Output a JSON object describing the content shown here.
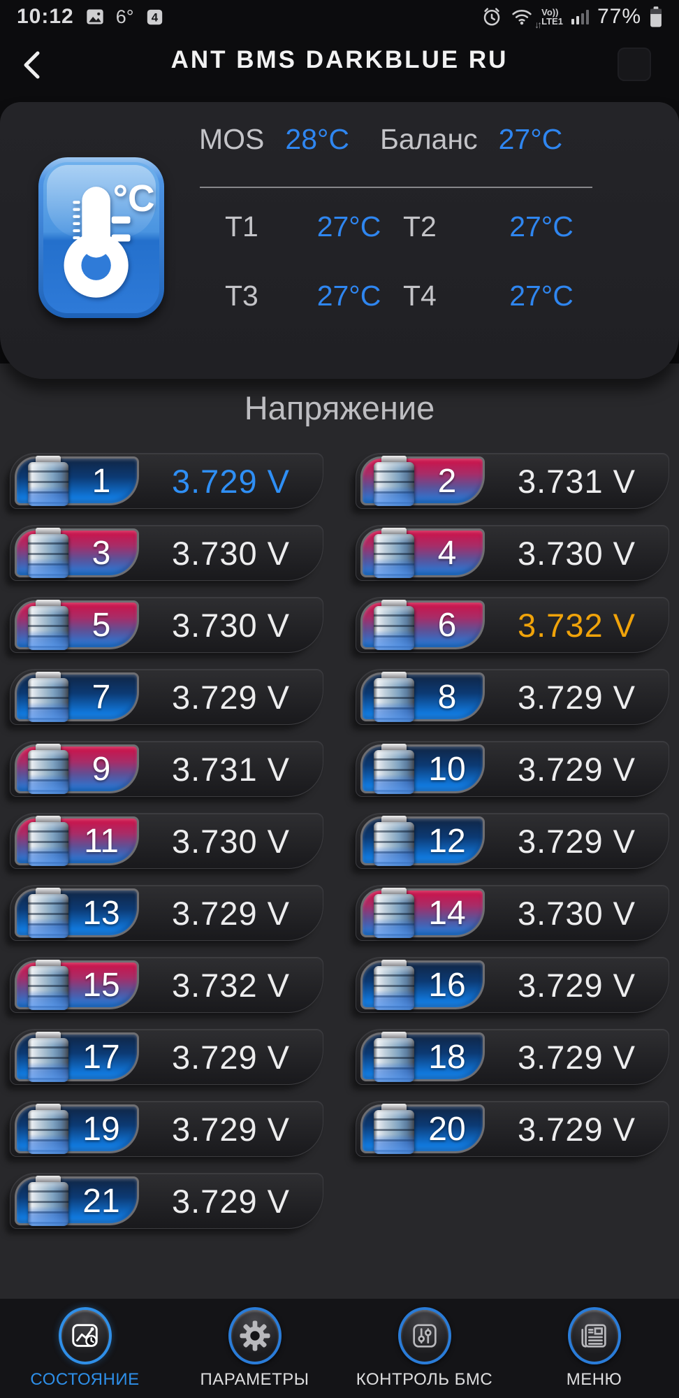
{
  "status_bar": {
    "time": "10:12",
    "temperature": "6°",
    "volte_line1": "Vo))",
    "volte_line2": "LTE1",
    "battery_percent": "77%"
  },
  "header": {
    "title": "ANT BMS DARKBLUE RU"
  },
  "temperature_card": {
    "mos_label": "MOS",
    "mos_value": "28°C",
    "balance_label": "Баланс",
    "balance_value": "27°C",
    "sensors": [
      {
        "label": "T1",
        "value": "27°C"
      },
      {
        "label": "T2",
        "value": "27°C"
      },
      {
        "label": "T3",
        "value": "27°C"
      },
      {
        "label": "T4",
        "value": "27°C"
      }
    ]
  },
  "voltage": {
    "section_title": "Напряжение",
    "cells": [
      {
        "num": "1",
        "value": "3.729 V",
        "badge": "blue",
        "highlight": "min"
      },
      {
        "num": "2",
        "value": "3.731 V",
        "badge": "red",
        "highlight": "normal"
      },
      {
        "num": "3",
        "value": "3.730 V",
        "badge": "red",
        "highlight": "normal"
      },
      {
        "num": "4",
        "value": "3.730 V",
        "badge": "red",
        "highlight": "normal"
      },
      {
        "num": "5",
        "value": "3.730 V",
        "badge": "red",
        "highlight": "normal"
      },
      {
        "num": "6",
        "value": "3.732 V",
        "badge": "red",
        "highlight": "max"
      },
      {
        "num": "7",
        "value": "3.729 V",
        "badge": "blue",
        "highlight": "normal"
      },
      {
        "num": "8",
        "value": "3.729 V",
        "badge": "blue",
        "highlight": "normal"
      },
      {
        "num": "9",
        "value": "3.731 V",
        "badge": "red",
        "highlight": "normal"
      },
      {
        "num": "10",
        "value": "3.729 V",
        "badge": "blue",
        "highlight": "normal"
      },
      {
        "num": "11",
        "value": "3.730 V",
        "badge": "red",
        "highlight": "normal"
      },
      {
        "num": "12",
        "value": "3.729 V",
        "badge": "blue",
        "highlight": "normal"
      },
      {
        "num": "13",
        "value": "3.729 V",
        "badge": "blue",
        "highlight": "normal"
      },
      {
        "num": "14",
        "value": "3.730 V",
        "badge": "red",
        "highlight": "normal"
      },
      {
        "num": "15",
        "value": "3.732 V",
        "badge": "red",
        "highlight": "normal"
      },
      {
        "num": "16",
        "value": "3.729 V",
        "badge": "blue",
        "highlight": "normal"
      },
      {
        "num": "17",
        "value": "3.729 V",
        "badge": "blue",
        "highlight": "normal"
      },
      {
        "num": "18",
        "value": "3.729 V",
        "badge": "blue",
        "highlight": "normal"
      },
      {
        "num": "19",
        "value": "3.729 V",
        "badge": "blue",
        "highlight": "normal"
      },
      {
        "num": "20",
        "value": "3.729 V",
        "badge": "blue",
        "highlight": "normal"
      },
      {
        "num": "21",
        "value": "3.729 V",
        "badge": "blue",
        "highlight": "normal"
      }
    ]
  },
  "nav": {
    "items": [
      {
        "key": "status",
        "label": "СОСТОЯНИЕ",
        "icon": "status-chart-icon",
        "active": true
      },
      {
        "key": "parameters",
        "label": "ПАРАМЕТРЫ",
        "icon": "gear-icon",
        "active": false
      },
      {
        "key": "bms-control",
        "label": "КОНТРОЛЬ БМС",
        "icon": "sliders-icon",
        "active": false
      },
      {
        "key": "menu",
        "label": "МЕНЮ",
        "icon": "menu-icon",
        "active": false
      }
    ]
  },
  "colors": {
    "accent_blue": "#2f86f0",
    "min_cell_blue": "#2f8ff5",
    "max_cell_orange": "#f0a30a",
    "badge_red": "#d01047",
    "badge_blue": "#1178dc"
  }
}
